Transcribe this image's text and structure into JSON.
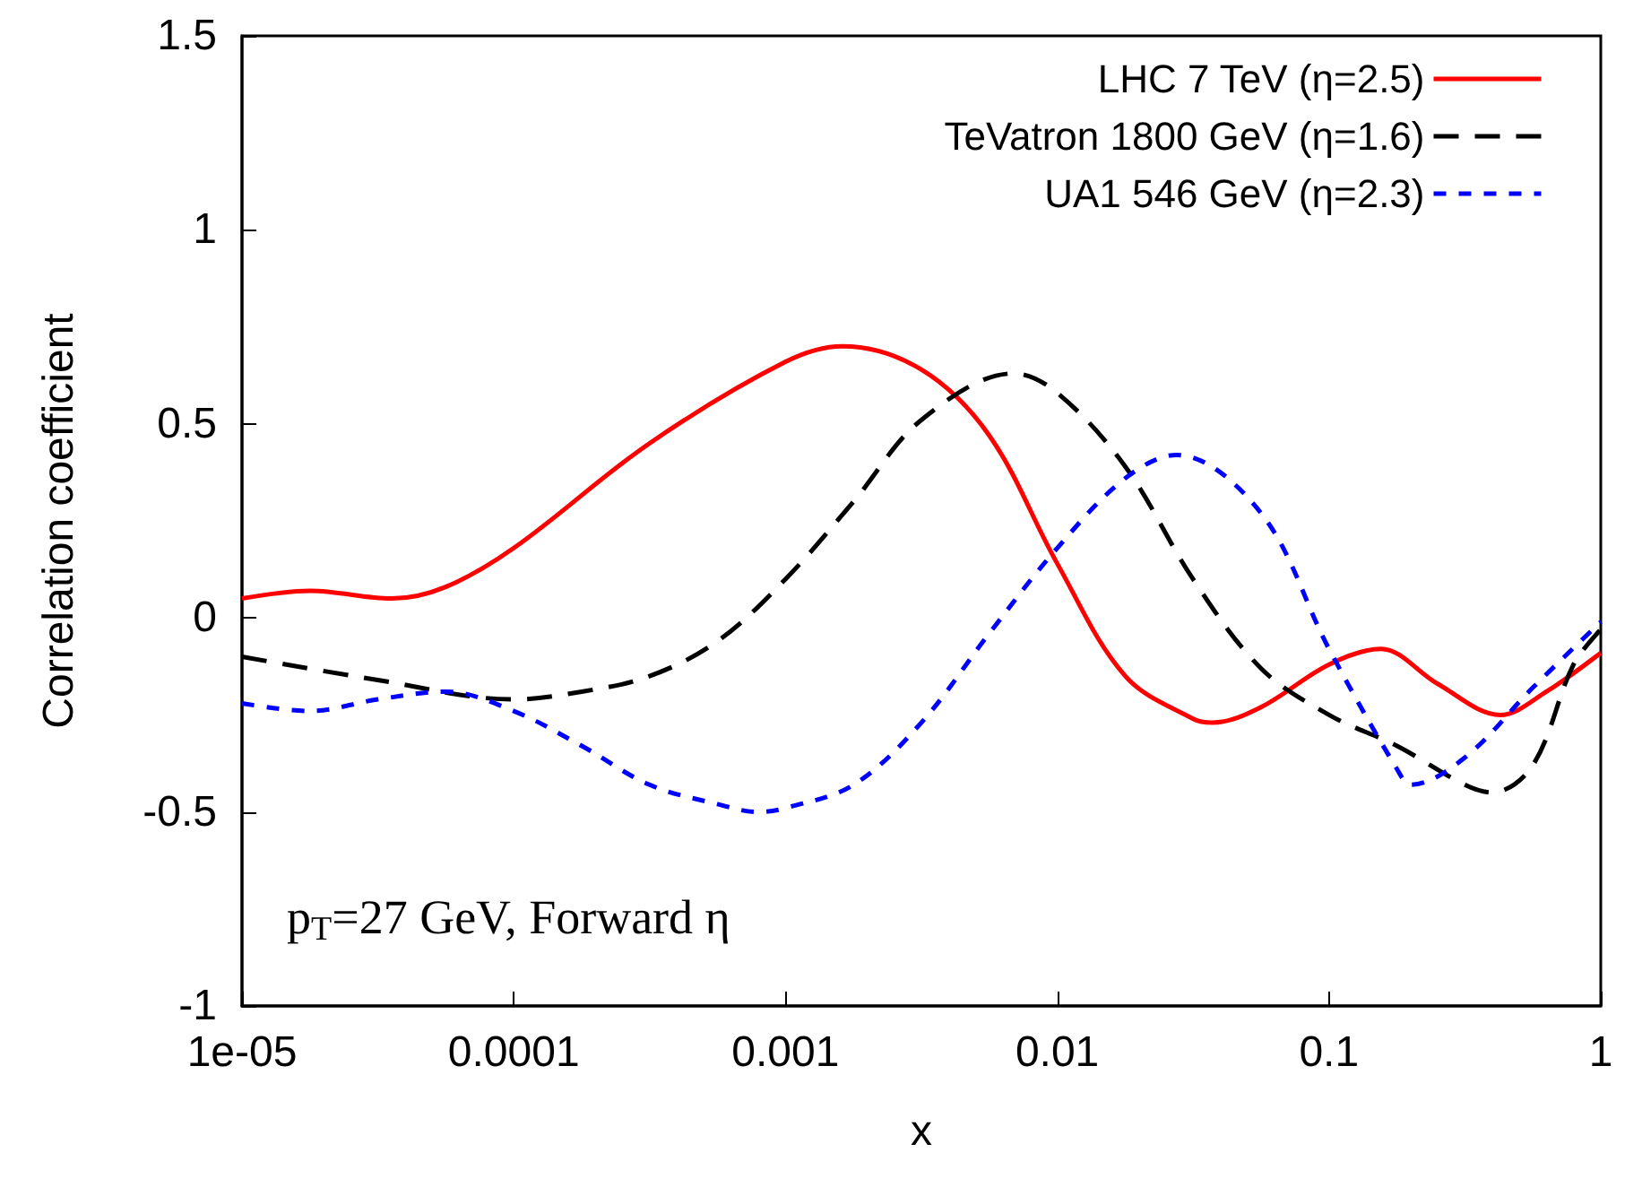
{
  "chart_data": {
    "type": "line",
    "xlabel": "x",
    "ylabel": "Correlation coefficient",
    "log": "x",
    "xlim": [
      1e-05,
      1
    ],
    "xticks": [
      {
        "value": 1e-05,
        "label": "1e-05"
      },
      0.0001,
      0.001,
      0.01,
      0.1,
      1
    ],
    "ylim": [
      -1,
      1.5
    ],
    "yticks": [
      -1,
      -0.5,
      0,
      0.5,
      1,
      1.5
    ],
    "grid": false,
    "legend": "top right",
    "marker": "none",
    "annotations": [
      "p$_{T}$=27 GeV, Forward η"
    ],
    "series": [
      {
        "name": "LHC 7 TeV (η=2.5)",
        "color": "#ff0000",
        "line_style": "solid",
        "x": [
          1e-05,
          1.78e-05,
          3.55e-05,
          5.62e-05,
          0.0001,
          0.000316,
          0.001,
          0.00162,
          0.00316,
          0.00562,
          0.01,
          0.0178,
          0.0316,
          0.0372,
          0.0562,
          0.1,
          0.155,
          0.251,
          0.427,
          0.631,
          1
        ],
        "values": [
          0.05,
          0.07,
          0.05,
          0.08,
          0.18,
          0.45,
          0.66,
          0.7,
          0.64,
          0.47,
          0.14,
          -0.15,
          -0.26,
          -0.27,
          -0.23,
          -0.12,
          -0.08,
          -0.17,
          -0.25,
          -0.19,
          -0.09
        ]
      },
      {
        "name": "TeVatron 1800 GeV (η=1.6)",
        "color": "#000000",
        "line_style": "dashed",
        "x": [
          1e-05,
          3.16e-05,
          0.0001,
          0.000178,
          0.000316,
          0.000562,
          0.001,
          0.00178,
          0.00316,
          0.00692,
          0.01,
          0.0178,
          0.0316,
          0.0562,
          0.1,
          0.178,
          0.316,
          0.398,
          0.562,
          0.794,
          1
        ],
        "values": [
          -0.1,
          -0.16,
          -0.21,
          -0.19,
          -0.15,
          -0.06,
          0.1,
          0.3,
          0.51,
          0.63,
          0.58,
          0.39,
          0.1,
          -0.13,
          -0.25,
          -0.33,
          -0.43,
          -0.45,
          -0.38,
          -0.12,
          -0.03
        ]
      },
      {
        "name": "UA1 546 GeV (η=2.3)",
        "color": "#0000ff",
        "line_style": "dotted",
        "x": [
          1e-05,
          1.78e-05,
          3.16e-05,
          5.62e-05,
          0.0001,
          0.000178,
          0.000316,
          0.000562,
          0.000794,
          0.001,
          0.00178,
          0.00316,
          0.00562,
          0.01,
          0.0178,
          0.0275,
          0.0562,
          0.1,
          0.178,
          0.2,
          0.316,
          0.562,
          1
        ],
        "values": [
          -0.22,
          -0.24,
          -0.21,
          -0.19,
          -0.24,
          -0.33,
          -0.43,
          -0.48,
          -0.5,
          -0.49,
          -0.43,
          -0.27,
          -0.04,
          0.18,
          0.36,
          0.42,
          0.27,
          -0.08,
          -0.39,
          -0.43,
          -0.36,
          -0.18,
          -0.01
        ]
      }
    ]
  }
}
